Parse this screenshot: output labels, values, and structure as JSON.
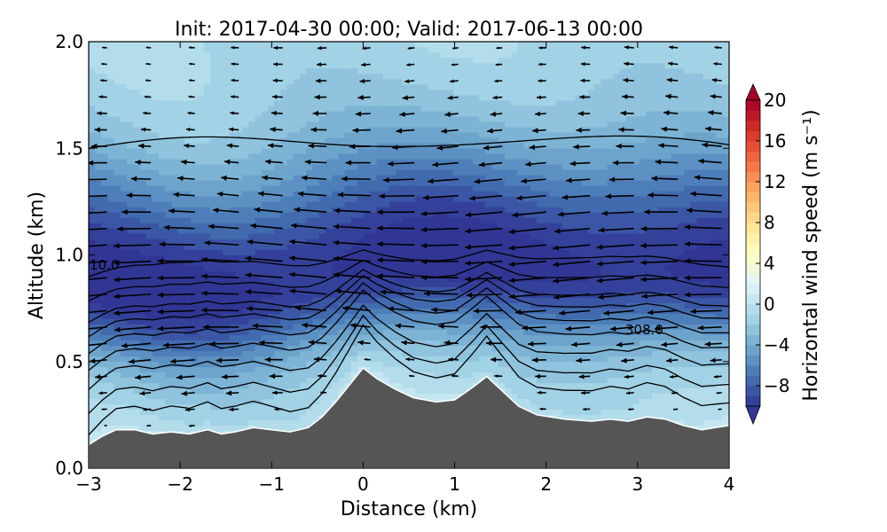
{
  "chart_data": {
    "type": "contour",
    "title": "Init: 2017-04-30 00:00; Valid: 2017-06-13 00:00",
    "xlabel": "Distance (km)",
    "ylabel": "Altitude (km)",
    "xlim": [
      -3,
      4
    ],
    "ylim": [
      0,
      2
    ],
    "x_ticks": [
      "−3",
      "−2",
      "−1",
      "0",
      "1",
      "2",
      "3",
      "4"
    ],
    "y_ticks": [
      "0.0",
      "0.5",
      "1.0",
      "1.5",
      "2.0"
    ],
    "colorbar": {
      "label": "Horizontal wind speed (m s⁻¹)",
      "range": [
        -10,
        20
      ],
      "ticks": [
        "20",
        "16",
        "12",
        "8",
        "4",
        "0",
        "−4",
        "−8"
      ],
      "colormap": "RdYlBu_r"
    },
    "contour_labels": [
      "10.0",
      "308.0"
    ],
    "terrain": {
      "color": "#555555",
      "profile": [
        [
          -3,
          0.11
        ],
        [
          -2.85,
          0.15
        ],
        [
          -2.7,
          0.18
        ],
        [
          -2.5,
          0.18
        ],
        [
          -2.3,
          0.16
        ],
        [
          -2.1,
          0.17
        ],
        [
          -1.9,
          0.16
        ],
        [
          -1.7,
          0.18
        ],
        [
          -1.55,
          0.16
        ],
        [
          -1.4,
          0.17
        ],
        [
          -1.2,
          0.19
        ],
        [
          -1.0,
          0.18
        ],
        [
          -0.8,
          0.17
        ],
        [
          -0.6,
          0.19
        ],
        [
          -0.45,
          0.24
        ],
        [
          -0.3,
          0.31
        ],
        [
          -0.15,
          0.39
        ],
        [
          0.0,
          0.47
        ],
        [
          0.15,
          0.42
        ],
        [
          0.35,
          0.37
        ],
        [
          0.55,
          0.33
        ],
        [
          0.8,
          0.31
        ],
        [
          1.0,
          0.32
        ],
        [
          1.2,
          0.38
        ],
        [
          1.35,
          0.43
        ],
        [
          1.5,
          0.37
        ],
        [
          1.7,
          0.29
        ],
        [
          1.9,
          0.25
        ],
        [
          2.2,
          0.23
        ],
        [
          2.5,
          0.22
        ],
        [
          2.7,
          0.23
        ],
        [
          2.9,
          0.22
        ],
        [
          3.1,
          0.24
        ],
        [
          3.3,
          0.23
        ],
        [
          3.5,
          0.2
        ],
        [
          3.7,
          0.18
        ],
        [
          3.85,
          0.19
        ],
        [
          4.0,
          0.2
        ]
      ]
    },
    "isentrope_levels": [
      0.26,
      0.35,
      0.45,
      0.53,
      0.6,
      0.67,
      0.73,
      0.82,
      0.92,
      1.5
    ]
  }
}
